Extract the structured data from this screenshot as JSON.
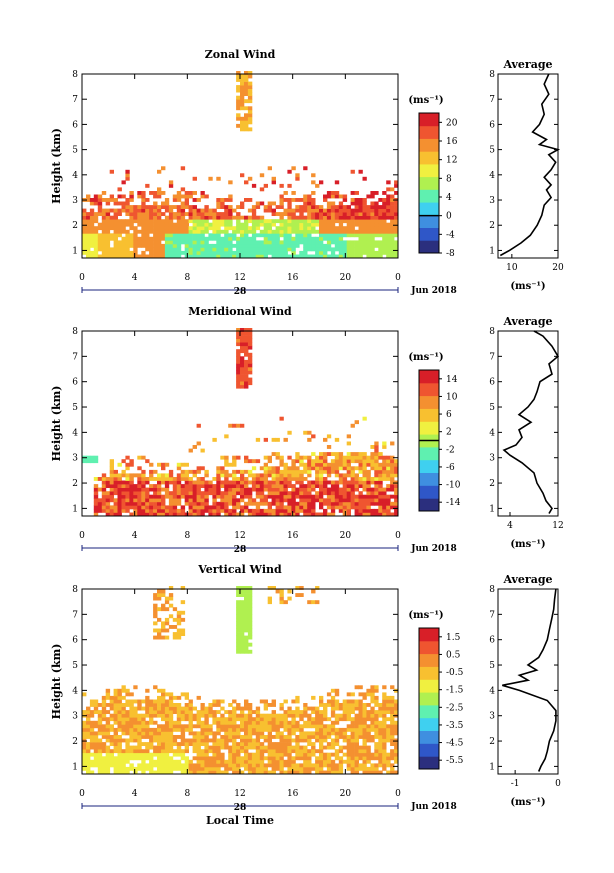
{
  "common": {
    "date_label": "Jun 2018",
    "x_axis_label": "Local Time",
    "day_label": "28",
    "y_axis_label": "Height (km)",
    "unit_label": "(ms⁻¹)",
    "avg_title": "Average",
    "x_ticks": [
      "0",
      "4",
      "8",
      "12",
      "16",
      "20",
      "0"
    ],
    "y_ticks": [
      "1",
      "2",
      "3",
      "4",
      "5",
      "6",
      "7",
      "8"
    ]
  },
  "chart_data": [
    {
      "type": "heatmap",
      "title": "Zonal Wind",
      "xlabel": "",
      "ylabel": "Height (km)",
      "xlim": [
        0,
        24
      ],
      "ylim": [
        0.7,
        8
      ],
      "colorbar": {
        "unit": "(ms⁻¹)",
        "min": -8,
        "max": 22,
        "ticks": [
          20,
          16,
          12,
          8,
          4,
          0,
          -4,
          -8
        ],
        "zero_line": 0
      },
      "colors": [
        "#2b2f7e",
        "#2f57c8",
        "#3f8fe0",
        "#3fd0f0",
        "#5ff0b0",
        "#b0f050",
        "#f0f040",
        "#f8c030",
        "#f49030",
        "#ef5530",
        "#d81f28"
      ],
      "average": {
        "title": "Average",
        "xlim": [
          7,
          20
        ],
        "xticks": [
          10,
          20
        ],
        "heights": [
          0.8,
          1.0,
          1.3,
          1.6,
          2.0,
          2.4,
          2.8,
          3.1,
          3.4,
          3.6,
          3.9,
          4.2,
          4.5,
          4.8,
          5.0,
          5.2,
          5.4,
          5.7,
          6.0,
          6.4,
          6.8,
          7.2,
          7.6,
          8.0
        ],
        "values": [
          7.5,
          9.5,
          12,
          14,
          15.5,
          16.5,
          17,
          18.5,
          17.5,
          18.5,
          17,
          18.5,
          19.5,
          18,
          20,
          16,
          17.5,
          14.5,
          16,
          17,
          16.5,
          18,
          17,
          18
        ]
      }
    },
    {
      "type": "heatmap",
      "title": "Meridional Wind",
      "xlabel": "",
      "ylabel": "Height (km)",
      "xlim": [
        0,
        24
      ],
      "ylim": [
        0.7,
        8
      ],
      "colorbar": {
        "unit": "(ms⁻¹)",
        "min": -16,
        "max": 16,
        "ticks": [
          14,
          10,
          6,
          2,
          -2,
          -6,
          -10,
          -14
        ],
        "zero_line": 0
      },
      "colors": [
        "#2b2f7e",
        "#2f57c8",
        "#3f8fe0",
        "#3fd0f0",
        "#5ff0b0",
        "#b0f050",
        "#f0f040",
        "#f8c030",
        "#f49030",
        "#ef5530",
        "#d81f28"
      ],
      "average": {
        "title": "Average",
        "xlim": [
          2,
          12
        ],
        "xticks": [
          4,
          12
        ],
        "heights": [
          0.8,
          1.0,
          1.3,
          1.6,
          2.0,
          2.4,
          2.8,
          3.1,
          3.3,
          3.5,
          3.8,
          4.1,
          4.4,
          4.7,
          5.0,
          5.3,
          5.6,
          6.0,
          6.3,
          6.7,
          7.0,
          7.4,
          7.8,
          8.0
        ],
        "values": [
          10.5,
          11,
          10,
          9.5,
          8.5,
          8,
          6,
          4,
          3,
          5,
          6,
          5.5,
          7.5,
          5.5,
          7,
          8,
          8.5,
          9,
          11,
          10.5,
          12,
          11,
          9.5,
          8
        ]
      }
    },
    {
      "type": "heatmap",
      "title": "Vertical Wind",
      "xlabel": "Local Time",
      "ylabel": "Height (km)",
      "xlim": [
        0,
        24
      ],
      "ylim": [
        0.7,
        8
      ],
      "colorbar": {
        "unit": "(ms⁻¹)",
        "min": -6,
        "max": 2,
        "ticks": [
          1.5,
          0.5,
          -0.5,
          -1.5,
          -2.5,
          -3.5,
          -4.5,
          -5.5
        ],
        "zero_line": null
      },
      "colors": [
        "#2b2f7e",
        "#2f57c8",
        "#3f8fe0",
        "#3fd0f0",
        "#5ff0b0",
        "#b0f050",
        "#f0f040",
        "#f8c030",
        "#f49030",
        "#ef5530",
        "#d81f28"
      ],
      "average": {
        "title": "Average",
        "xlim": [
          -1.4,
          0
        ],
        "xticks": [
          -1,
          0
        ],
        "heights": [
          0.8,
          1.0,
          1.3,
          1.6,
          2.0,
          2.4,
          2.8,
          3.2,
          3.6,
          4.0,
          4.2,
          4.4,
          4.6,
          4.8,
          5.0,
          5.3,
          5.6,
          6.0,
          6.4,
          6.8,
          7.2,
          7.6,
          8.0
        ],
        "values": [
          -0.45,
          -0.4,
          -0.3,
          -0.25,
          -0.2,
          -0.1,
          -0.05,
          -0.05,
          -0.25,
          -0.9,
          -1.3,
          -0.7,
          -0.9,
          -0.5,
          -0.7,
          -0.45,
          -0.35,
          -0.25,
          -0.2,
          -0.15,
          -0.1,
          -0.08,
          -0.05
        ]
      }
    }
  ]
}
